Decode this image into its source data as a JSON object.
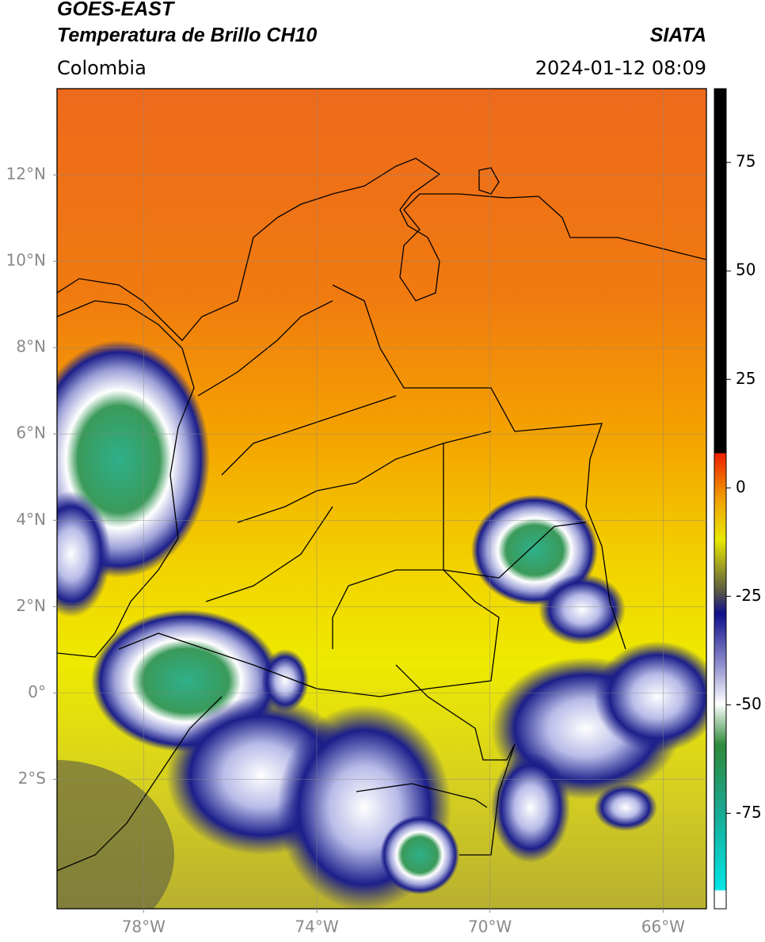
{
  "chart_data": {
    "type": "map",
    "title": "GOES-EAST",
    "subtitle": "Temperatura de Brillo CH10",
    "source": "SIATA",
    "region": "Colombia",
    "datetime": "2024-01-12 08:09",
    "xlim": [
      -80,
      -65
    ],
    "ylim": [
      -5,
      14
    ],
    "xticks": [
      {
        "value": -78,
        "label": "78°W"
      },
      {
        "value": -74,
        "label": "74°W"
      },
      {
        "value": -70,
        "label": "70°W"
      },
      {
        "value": -66,
        "label": "66°W"
      }
    ],
    "yticks": [
      {
        "value": 12,
        "label": "12°N"
      },
      {
        "value": 10,
        "label": "10°N"
      },
      {
        "value": 8,
        "label": "8°N"
      },
      {
        "value": 6,
        "label": "6°N"
      },
      {
        "value": 4,
        "label": "4°N"
      },
      {
        "value": 2,
        "label": "2°N"
      },
      {
        "value": 0,
        "label": "0°"
      },
      {
        "value": -2,
        "label": "2°S"
      }
    ],
    "grid": true,
    "colorbar_lim": [
      -97,
      92
    ],
    "colorbar_ticks": [
      75,
      50,
      25,
      0,
      -25,
      -50,
      -75
    ]
  }
}
